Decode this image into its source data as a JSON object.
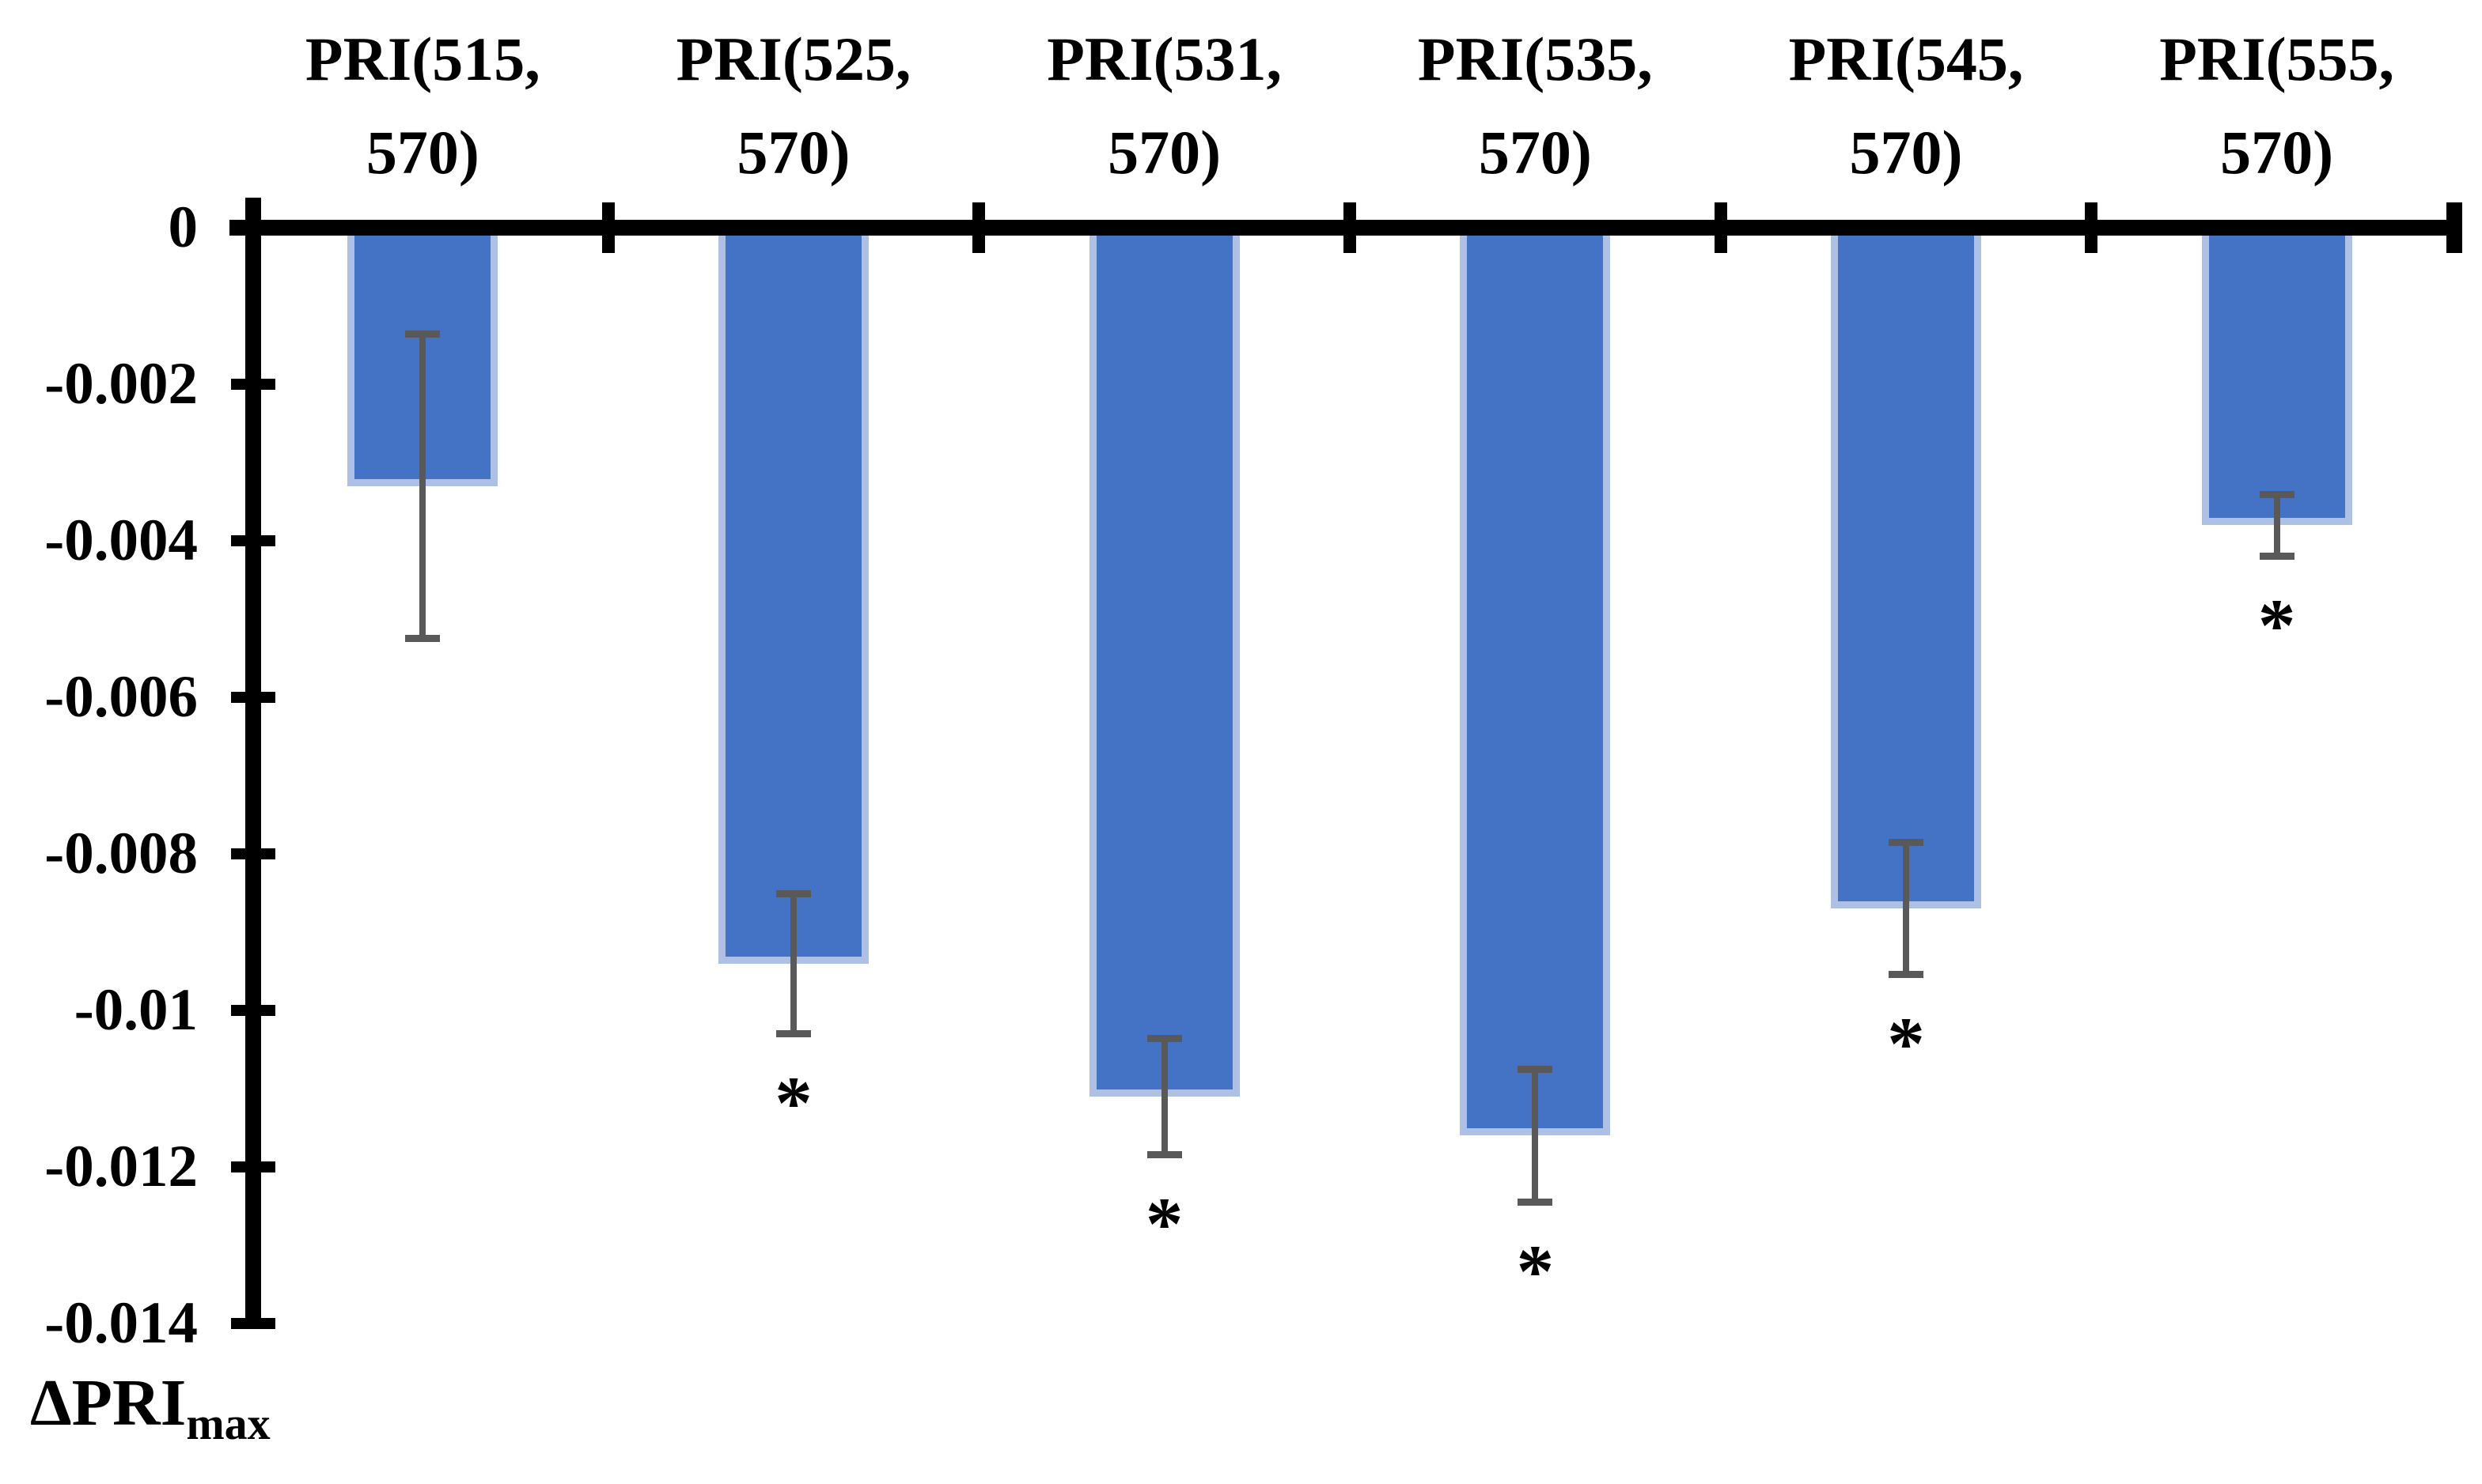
{
  "page": {
    "background": "#ffffff"
  },
  "chart_data": {
    "type": "bar",
    "title": "",
    "orientation": "vertical-negative",
    "categories": [
      "PRI(515, 570)",
      "PRI(525, 570)",
      "PRI(531, 570)",
      "PRI(535, 570)",
      "PRI(545, 570)",
      "PRI(555, 570)"
    ],
    "category_lines": [
      [
        "PRI(515,",
        "570)"
      ],
      [
        "PRI(525,",
        "570)"
      ],
      [
        "PRI(531,",
        "570)"
      ],
      [
        "PRI(535,",
        "570)"
      ],
      [
        "PRI(545,",
        "570)"
      ],
      [
        "PRI(555,",
        "570)"
      ]
    ],
    "values": [
      -0.0033,
      -0.0094,
      -0.0111,
      -0.0116,
      -0.0087,
      -0.0038
    ],
    "errors": [
      0.00195,
      0.0009,
      0.00075,
      0.00085,
      0.00085,
      0.0004
    ],
    "significance": [
      "",
      "*",
      "*",
      "*",
      "*",
      "*"
    ],
    "ylabel_main": "ΔPRI",
    "ylabel_sub": "max",
    "xlabel": "",
    "ylim": [
      0,
      -0.014
    ],
    "yticks": [
      0,
      -0.002,
      -0.004,
      -0.006,
      -0.008,
      -0.01,
      -0.012,
      -0.014
    ],
    "ytick_labels": [
      "0",
      "-0.002",
      "-0.004",
      "-0.006",
      "-0.008",
      "-0.01",
      "-0.012",
      "-0.014"
    ],
    "grid": false,
    "legend": false,
    "bar_color": "#4472C4",
    "bar_edge_color": "#AEC1E5",
    "error_bar_color": "#595959",
    "axis_color": "#000000",
    "text_color": "#000000"
  }
}
